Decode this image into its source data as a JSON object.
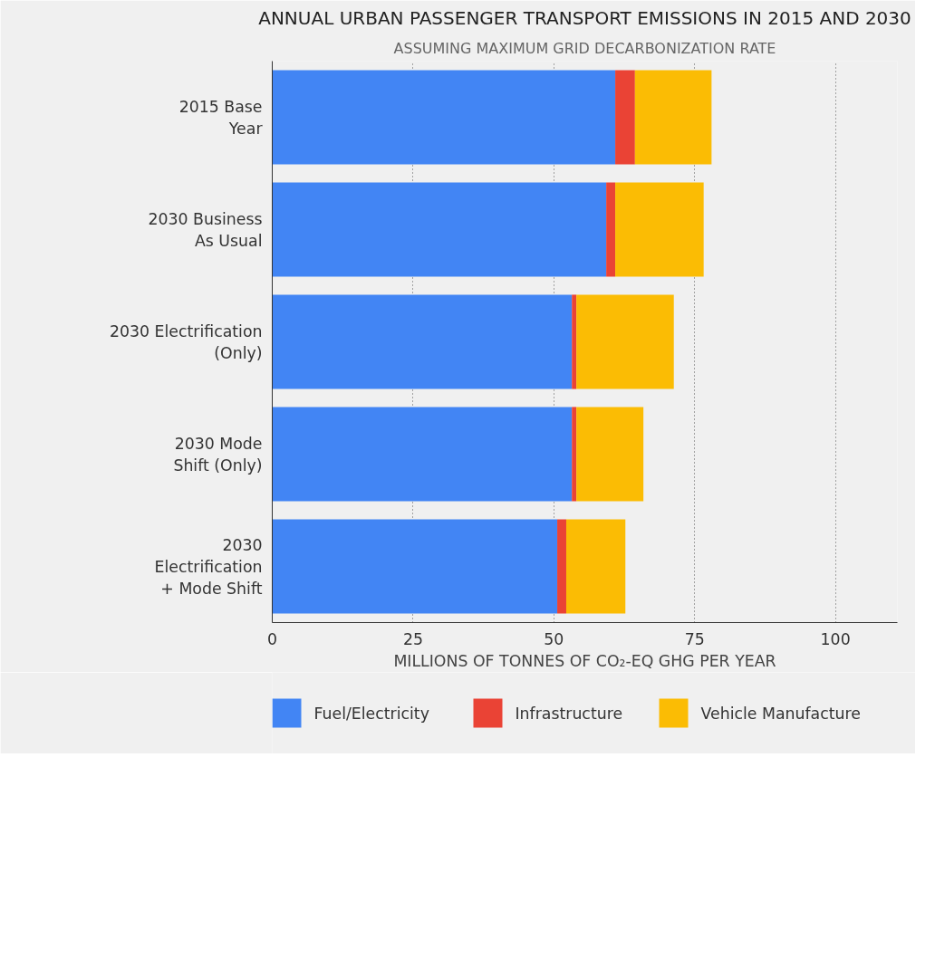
{
  "chart_data": {
    "type": "bar",
    "orientation": "horizontal",
    "stacked": true,
    "title": "ANNUAL URBAN PASSENGER TRANSPORT EMISSIONS IN 2015 AND 2030",
    "subtitle": "ASSUMING MAXIMUM GRID DECARBONIZATION RATE",
    "xlabel": "MILLIONS OF TONNES OF CO₂-EQ GHG PER YEAR",
    "categories": [
      "2015 Base\nYear",
      "2030 Business\nAs Usual",
      "2030 Electrification\n(Only)",
      "2030 Mode\nShift (Only)",
      "2030\nElectrification\n+ Mode Shift"
    ],
    "series": [
      {
        "name": "Fuel/Electricity",
        "color": "#4285f4",
        "values": [
          60.9,
          59.3,
          53.2,
          53.2,
          50.6
        ]
      },
      {
        "name": "Infrastructure",
        "color": "#ea4335",
        "values": [
          3.5,
          1.6,
          0.8,
          0.8,
          1.6
        ]
      },
      {
        "name": "Vehicle Manufacture",
        "color": "#fbbc04",
        "values": [
          13.6,
          15.7,
          17.3,
          11.9,
          10.5
        ]
      }
    ],
    "xlim": [
      0,
      111
    ],
    "xticks": [
      0,
      25,
      50,
      75,
      100
    ],
    "grid": "x",
    "legend": "bottom"
  }
}
